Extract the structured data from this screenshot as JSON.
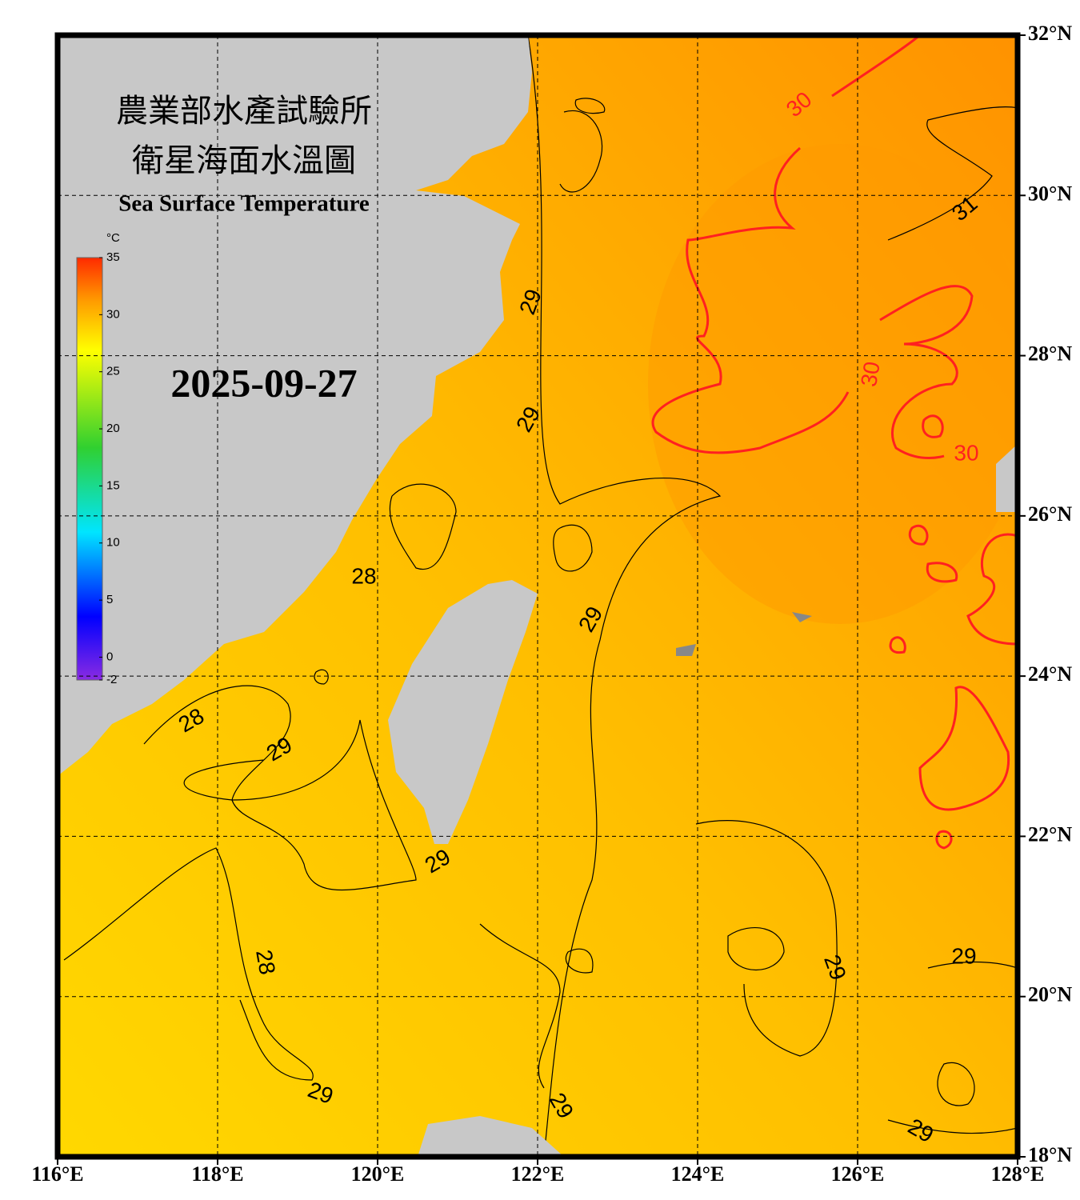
{
  "map": {
    "title_zh_1": "農業部水產試驗所",
    "title_zh_2": "衛星海面水溫圖",
    "title_en": "Sea Surface Temperature",
    "date": "2025-09-27",
    "lonlim": [
      116,
      128
    ],
    "latlim": [
      18,
      32
    ],
    "lonticks": [
      {
        "value": 116,
        "label": "116°E"
      },
      {
        "value": 118,
        "label": "118°E"
      },
      {
        "value": 120,
        "label": "120°E"
      },
      {
        "value": 122,
        "label": "122°E"
      },
      {
        "value": 124,
        "label": "124°E"
      },
      {
        "value": 126,
        "label": "126°E"
      },
      {
        "value": 128,
        "label": "128°E"
      }
    ],
    "latticks": [
      {
        "value": 18,
        "label": "18°N"
      },
      {
        "value": 20,
        "label": "20°N"
      },
      {
        "value": 22,
        "label": "22°N"
      },
      {
        "value": 24,
        "label": "24°N"
      },
      {
        "value": 26,
        "label": "26°N"
      },
      {
        "value": 28,
        "label": "28°N"
      },
      {
        "value": 30,
        "label": "30°N"
      },
      {
        "value": 32,
        "label": "32°N"
      }
    ],
    "grid": true,
    "colorbar": {
      "unit": "°C",
      "lim": [
        -2,
        35
      ],
      "ticks": [
        35,
        30,
        25,
        20,
        15,
        10,
        5,
        0,
        -2
      ]
    },
    "contour_labels": [
      {
        "label": "29",
        "color": "#000000"
      },
      {
        "label": "29",
        "color": "#000000"
      },
      {
        "label": "28",
        "color": "#000000"
      },
      {
        "label": "29",
        "color": "#000000"
      },
      {
        "label": "28",
        "color": "#000000"
      },
      {
        "label": "29",
        "color": "#000000"
      },
      {
        "label": "29",
        "color": "#000000"
      },
      {
        "label": "28",
        "color": "#000000"
      },
      {
        "label": "29",
        "color": "#000000"
      },
      {
        "label": "29",
        "color": "#000000"
      },
      {
        "label": "29",
        "color": "#000000"
      },
      {
        "label": "29",
        "color": "#000000"
      },
      {
        "label": "29",
        "color": "#000000"
      },
      {
        "label": "30",
        "color": "#ff2020"
      },
      {
        "label": "31",
        "color": "#000000"
      },
      {
        "label": "30",
        "color": "#ff2020"
      },
      {
        "label": "30",
        "color": "#ff2020"
      }
    ]
  }
}
